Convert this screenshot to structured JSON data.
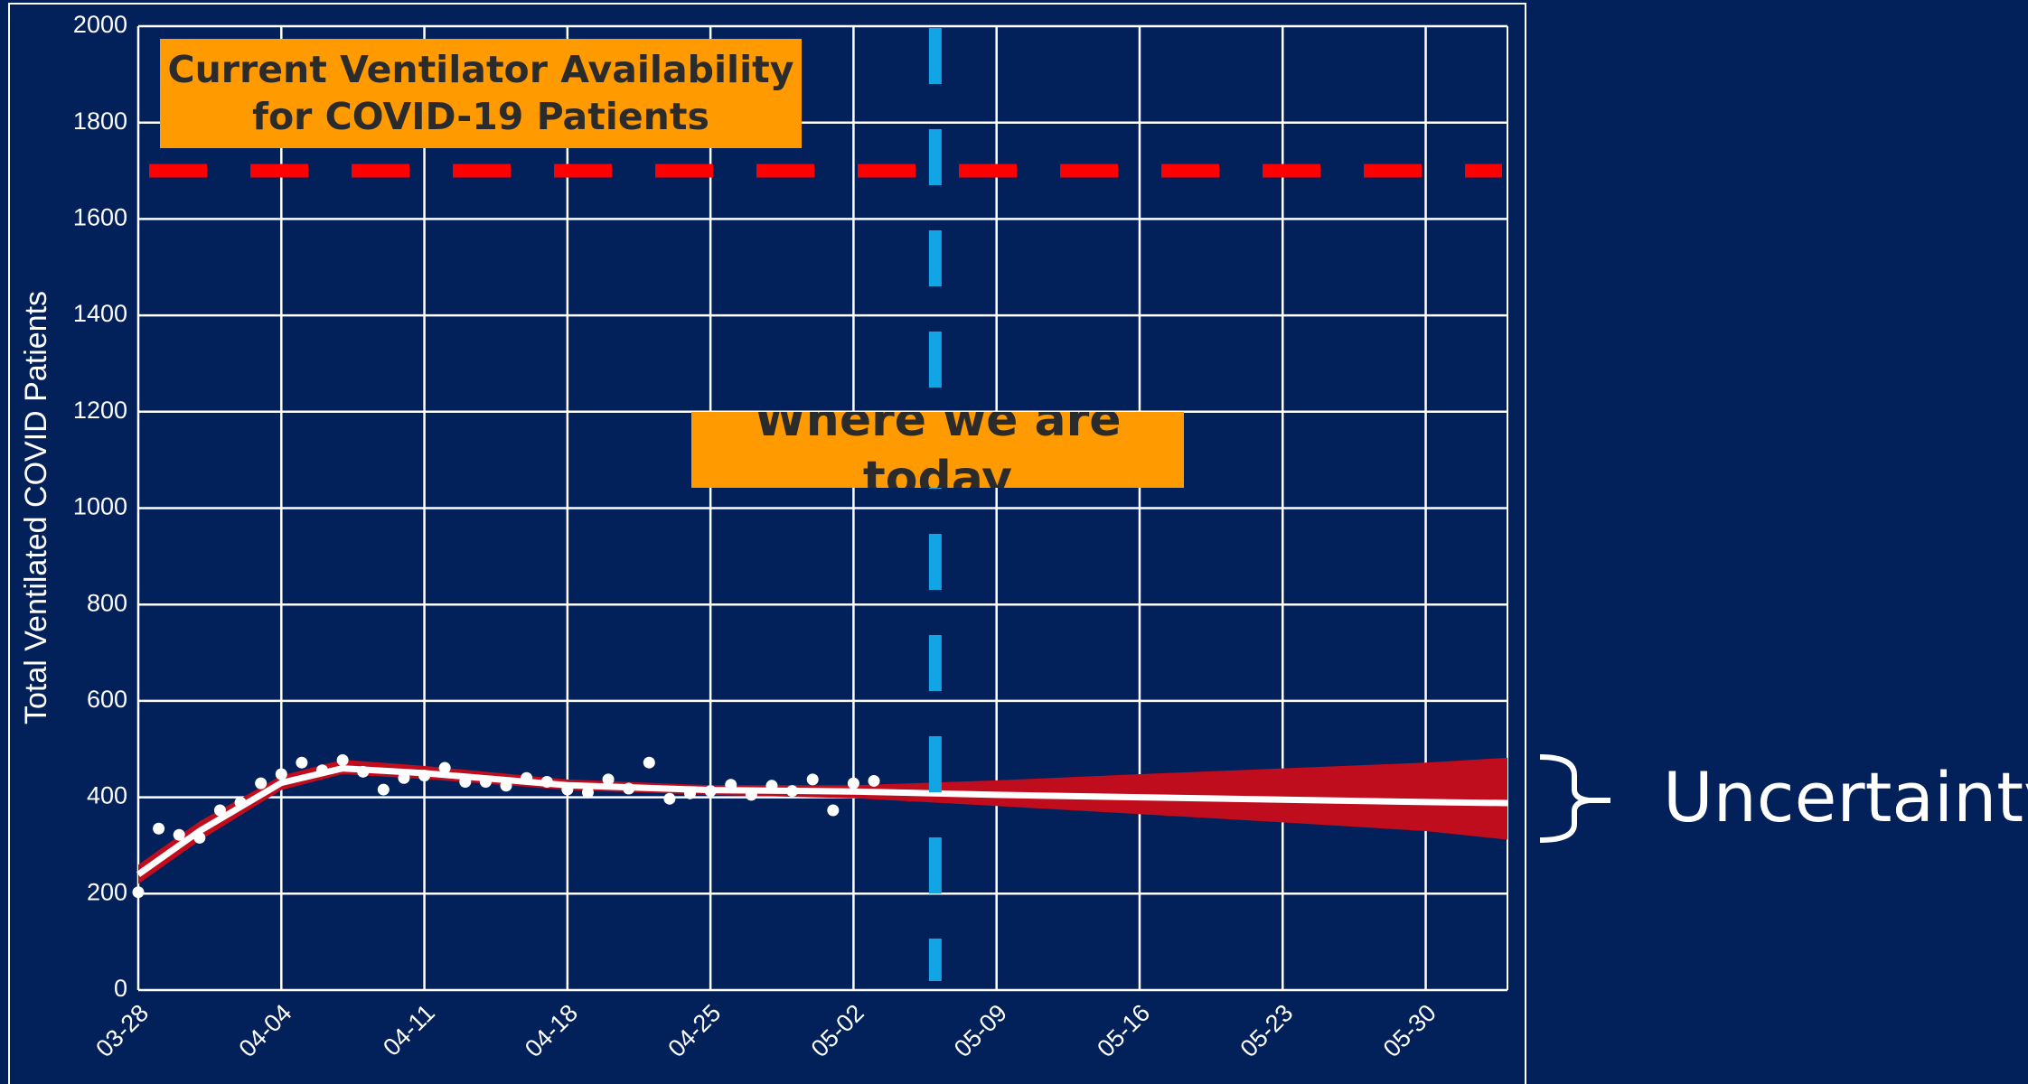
{
  "chart_data": {
    "type": "line",
    "y_label": "Total Ventilated COVID Patients",
    "xlim": [
      "03-28",
      "06-03"
    ],
    "xticks": [
      "03-28",
      "04-04",
      "04-11",
      "04-18",
      "04-25",
      "05-02",
      "05-09",
      "05-16",
      "05-23",
      "05-30"
    ],
    "ylim": [
      0,
      2000
    ],
    "yticks": [
      0,
      200,
      400,
      600,
      800,
      1000,
      1200,
      1400,
      1600,
      1800,
      2000
    ],
    "grid": true,
    "observed": {
      "color": "#ffffff",
      "x": [
        "03-28",
        "03-29",
        "03-30",
        "03-31",
        "04-01",
        "04-02",
        "04-03",
        "04-04",
        "04-05",
        "04-06",
        "04-07",
        "04-08",
        "04-09",
        "04-10",
        "04-11",
        "04-12",
        "04-13",
        "04-14",
        "04-15",
        "04-16",
        "04-17",
        "04-18",
        "04-19",
        "04-20",
        "04-21",
        "04-22",
        "04-23",
        "04-24",
        "04-25",
        "04-26",
        "04-27",
        "04-28",
        "04-29",
        "04-30",
        "05-01",
        "05-02",
        "05-03"
      ],
      "values": [
        203,
        335,
        322,
        316,
        373,
        389,
        429,
        448,
        472,
        456,
        477,
        453,
        416,
        440,
        445,
        461,
        432,
        432,
        424,
        440,
        432,
        416,
        410,
        437,
        418,
        472,
        397,
        408,
        413,
        426,
        405,
        424,
        413,
        437,
        373,
        429,
        434
      ]
    },
    "fit": {
      "color": "#ffffff",
      "band_color": "#c00d1e",
      "x": [
        "03-28",
        "03-31",
        "04-04",
        "04-07",
        "04-11",
        "04-18",
        "04-25",
        "05-02",
        "05-09",
        "05-16",
        "05-23",
        "05-30",
        "06-03"
      ],
      "values": [
        240,
        330,
        430,
        460,
        450,
        425,
        415,
        412,
        405,
        400,
        395,
        390,
        388
      ],
      "lower": [
        220,
        310,
        415,
        448,
        438,
        415,
        405,
        398,
        382,
        365,
        348,
        330,
        312
      ],
      "upper": [
        260,
        350,
        445,
        478,
        465,
        437,
        425,
        425,
        435,
        448,
        460,
        472,
        482
      ]
    },
    "capacity_line": {
      "value": 1700,
      "color": "#ff0000",
      "label": "Current Ventilator Availability for COVID-19 Patients"
    },
    "today_line": {
      "x": "05-06",
      "color": "#12a5e6",
      "label": "Where we are today"
    },
    "uncertainty_label": "Uncertainty"
  }
}
